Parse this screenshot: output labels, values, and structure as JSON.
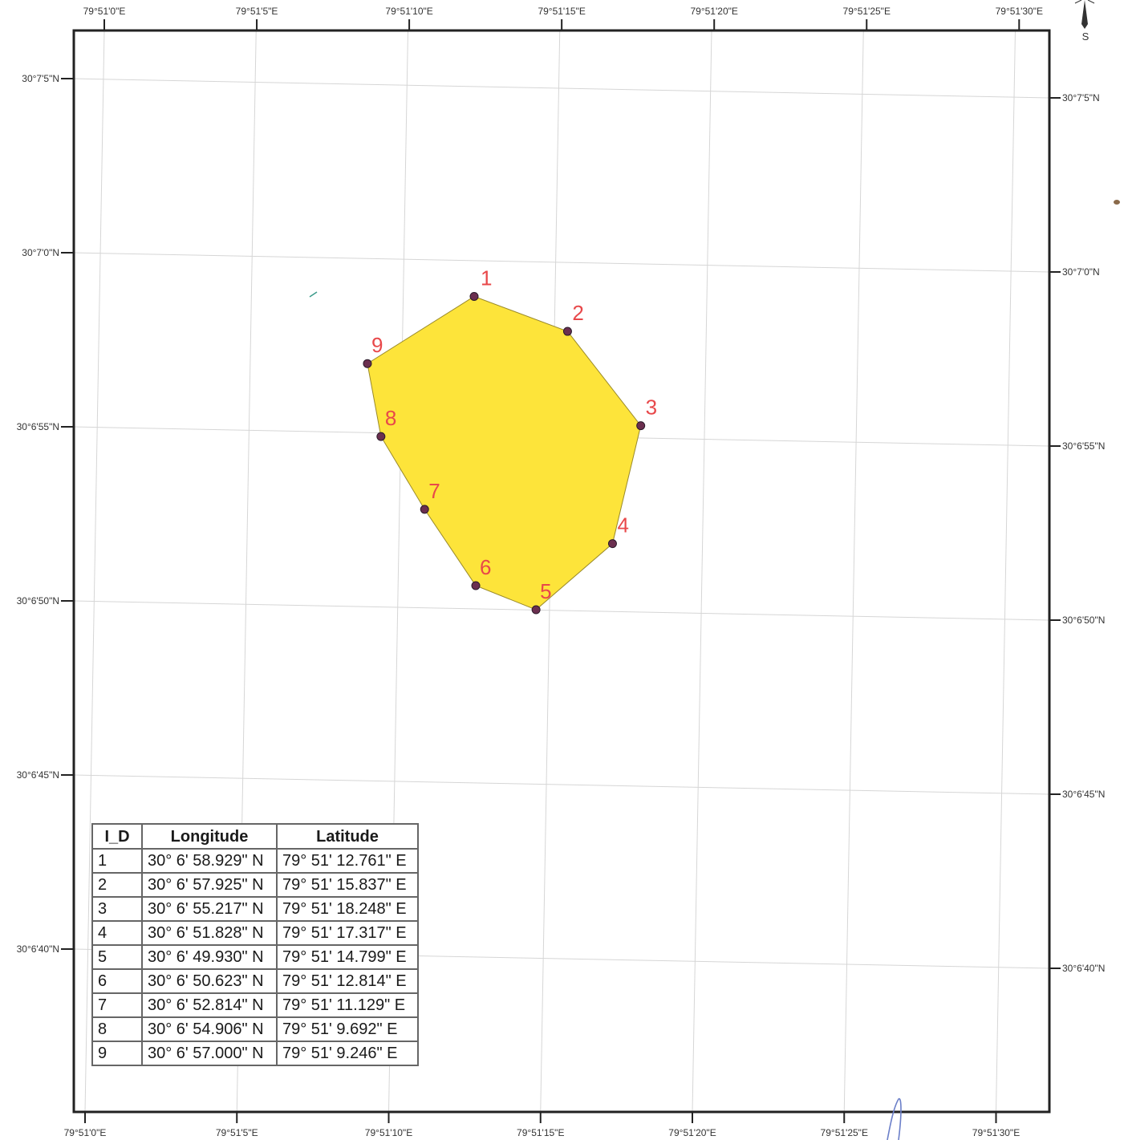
{
  "map": {
    "top_lon_labels": [
      "79°51'0\"E",
      "79°51'5\"E",
      "79°51'10\"E",
      "79°51'15\"E",
      "79°51'20\"E",
      "79°51'25\"E",
      "79°51'30\"E"
    ],
    "bottom_lon_labels": [
      "79°51'0\"E",
      "79°51'5\"E",
      "79°51'10\"E",
      "79°51'15\"E",
      "79°51'20\"E",
      "79°51'25\"E",
      "79°51'30\"E"
    ],
    "left_lat_labels": [
      "30°7'5\"N",
      "30°7'0\"N",
      "30°6'55\"N",
      "30°6'50\"N",
      "30°6'45\"N",
      "30°6'40\"N"
    ],
    "right_lat_labels": [
      "30°7'5\"N",
      "30°7'0\"N",
      "30°6'55\"N",
      "30°6'50\"N",
      "30°6'45\"N",
      "30°6'40\"N"
    ],
    "north_arrow_letter": "S",
    "polygon_fill": "#fde43a",
    "vertex_label_color": "#e8484a",
    "vertex_dot_color": "#6b2f4f"
  },
  "vertices": [
    {
      "id": "1",
      "lon_sec": 12.761,
      "lat_sec": 58.929
    },
    {
      "id": "2",
      "lon_sec": 15.837,
      "lat_sec": 57.925
    },
    {
      "id": "3",
      "lon_sec": 18.248,
      "lat_sec": 55.217
    },
    {
      "id": "4",
      "lon_sec": 17.317,
      "lat_sec": 51.828
    },
    {
      "id": "5",
      "lon_sec": 14.799,
      "lat_sec": 49.93
    },
    {
      "id": "6",
      "lon_sec": 12.814,
      "lat_sec": 50.623
    },
    {
      "id": "7",
      "lon_sec": 11.129,
      "lat_sec": 52.814
    },
    {
      "id": "8",
      "lon_sec": 9.692,
      "lat_sec": 54.906
    },
    {
      "id": "9",
      "lon_sec": 9.246,
      "lat_sec": 57.0
    }
  ],
  "table": {
    "headers": [
      "I_D",
      "Longitude",
      "Latitude"
    ],
    "rows": [
      [
        "1",
        "30° 6' 58.929\" N",
        "79° 51' 12.761\" E"
      ],
      [
        "2",
        "30° 6' 57.925\" N",
        "79° 51' 15.837\" E"
      ],
      [
        "3",
        "30° 6' 55.217\" N",
        "79° 51' 18.248\" E"
      ],
      [
        "4",
        "30° 6' 51.828\" N",
        "79° 51' 17.317\" E"
      ],
      [
        "5",
        "30° 6' 49.930\" N",
        "79° 51' 14.799\" E"
      ],
      [
        "6",
        "30° 6' 50.623\" N",
        "79° 51' 12.814\" E"
      ],
      [
        "7",
        "30° 6' 52.814\" N",
        "79° 51' 11.129\" E"
      ],
      [
        "8",
        "30° 6' 54.906\" N",
        "79° 51' 9.692\" E"
      ],
      [
        "9",
        "30° 6' 57.000\" N",
        "79° 51' 9.246\" E"
      ]
    ]
  }
}
